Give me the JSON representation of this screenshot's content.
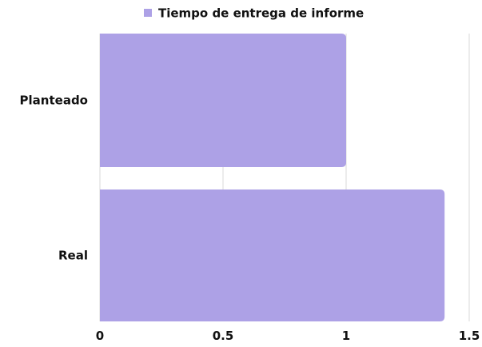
{
  "chart_data": {
    "type": "bar",
    "orientation": "horizontal",
    "categories": [
      "Planteado",
      "Real"
    ],
    "series": [
      {
        "name": "Tiempo de entrega de informe",
        "values": [
          1,
          1.4
        ],
        "color": "#ada1e6"
      }
    ],
    "xlim": [
      0,
      1.5
    ],
    "xticks": [
      "0",
      "0.5",
      "1",
      "1.5"
    ],
    "grid": true,
    "legend_position": "top-center"
  }
}
